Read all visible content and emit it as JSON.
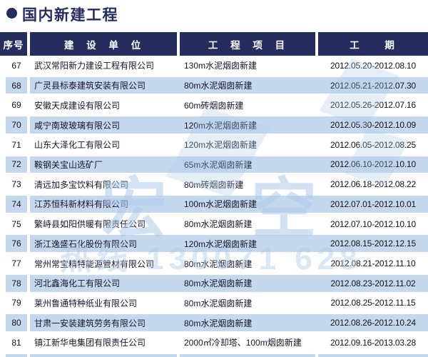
{
  "page": {
    "title": "国内新建工程",
    "accent_navy": "#252C5E",
    "row_highlight_blue": "#C5D8EE"
  },
  "table": {
    "columns": [
      "序号",
      "建 设 单 位",
      "工 程 项 目",
      "工 期"
    ],
    "rows": [
      {
        "no": "67",
        "company": "武汉常阳新力建设工程有限公司",
        "project": "130m水泥烟囱新建",
        "period": "2012.05.20-2012.08.10"
      },
      {
        "no": "68",
        "company": "广灵县标泰建筑安装有限公司",
        "project": "80m水泥烟囱新建",
        "period": "2012.05.21-2012.07.30"
      },
      {
        "no": "69",
        "company": "安徽天成建设有限公司",
        "project": "60m砖烟囱新建",
        "period": "2012.05.26-2012.07.16"
      },
      {
        "no": "70",
        "company": "咸宁南玻玻璃有限公司",
        "project": "120m水泥烟囱新建",
        "period": "2012.05.30-2012.10.09"
      },
      {
        "no": "71",
        "company": "山东大泽化工有限公司",
        "project": "120m水泥烟囱新建",
        "period": "2012.06.05-2012.08.25"
      },
      {
        "no": "72",
        "company": "鞍钢关宝山选矿厂",
        "project": "65m水泥烟囱新建",
        "period": "2012.06.10-2012.10.10"
      },
      {
        "no": "73",
        "company": "清远加多宝饮料有限公司",
        "project": "80m砖烟囱新建",
        "period": "2012.06.18-2012.08.22"
      },
      {
        "no": "74",
        "company": "江苏恒科新材料有限公司",
        "project": "100m水泥烟囱新建",
        "period": "2012.07.01-2012.10.01"
      },
      {
        "no": "75",
        "company": "繁峙县如阳供暖有限责任公司",
        "project": "80m水泥烟囱新建",
        "period": "2012.07.10-2012.10.10"
      },
      {
        "no": "76",
        "company": "浙江逸盛石化股份有限公司",
        "project": "120m水泥烟囱新建",
        "period": "2012.08.15-2012.12.15"
      },
      {
        "no": "77",
        "company": "常州常宝精特能源管材有限公司",
        "project": "80m水泥烟囱新建",
        "period": "2012.08.21-2012.11.10"
      },
      {
        "no": "78",
        "company": "河北鑫海化工有限公司",
        "project": "80m水泥烟囱新建",
        "period": "2012.08.23-2012.11.02"
      },
      {
        "no": "79",
        "company": "莱州鲁通特种纸业有限公司",
        "project": "80m水泥烟囱新建",
        "period": "2012.08.25-2012.11.15"
      },
      {
        "no": "80",
        "company": "甘肃一安装建筑劳务有限公司",
        "project": "80m水泥烟囱新建",
        "period": "2012.08.26-2012.10.24"
      },
      {
        "no": "81",
        "company": "镇江新华电集团有限责任公司",
        "project": "2000㎡冷却塔、100m烟囱新建",
        "period": "2012.09.16-2013.03.28"
      }
    ]
  },
  "watermark": {
    "logo_left_char": "宏",
    "logo_right_char": "空",
    "hotline_fragment": "热线 130071 628"
  }
}
